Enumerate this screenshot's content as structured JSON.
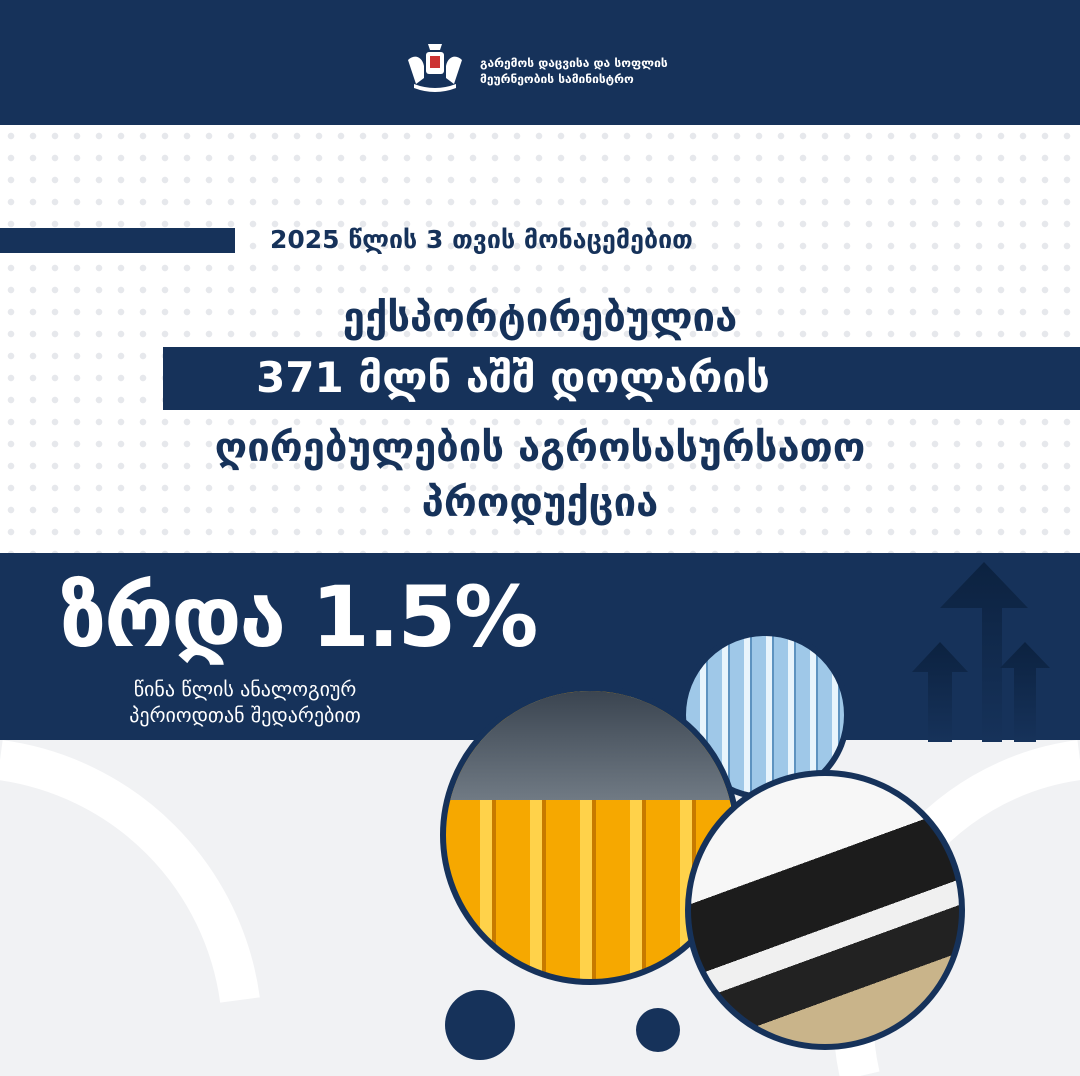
{
  "header": {
    "ministry_line1": "გარემოს დაცვისა და სოფლის",
    "ministry_line2": "მეურნეობის სამინისტრო",
    "logo": "coat-of-arms-of-georgia"
  },
  "main": {
    "date_label": "2025 წლის 3 თვის მონაცემებით",
    "line1": "ექსპორტირებულია",
    "line2": "371 მლნ აშშ დოლარის",
    "line3": "ღირებულების აგროსასურსათო",
    "line4": "პროდუქცია"
  },
  "growth": {
    "label": "ზრდა 1.5%",
    "sub_line1": "წინა წლის ანალოგიურ",
    "sub_line2": "პერიოდთან შედარებით"
  },
  "colors": {
    "navy": "#16325a",
    "background": "#f1f2f4"
  },
  "images": [
    "juice-bottles-production-line",
    "water-bottles-production-line",
    "dairy-cows-feeding"
  ]
}
